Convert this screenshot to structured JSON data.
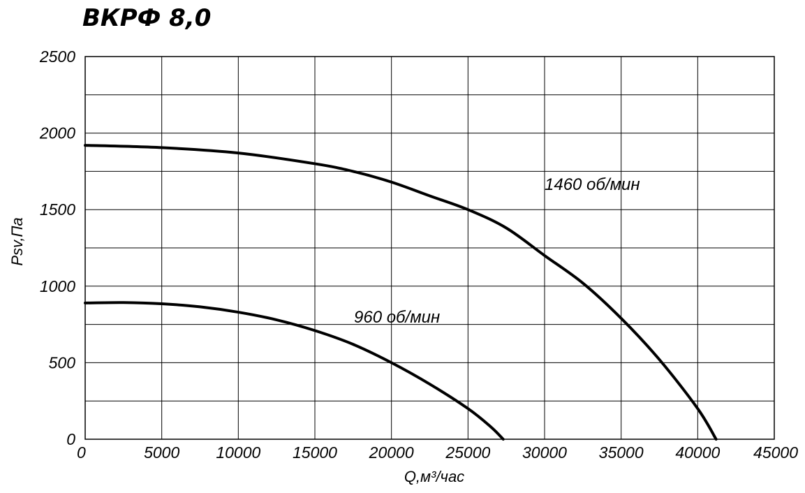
{
  "chart_data": {
    "type": "line",
    "title": "ВКРФ 8,0",
    "xlabel": "Q,м³/час",
    "ylabel": "Psv,Па",
    "xlim": [
      0,
      45000
    ],
    "ylim": [
      0,
      2500
    ],
    "x_ticks": [
      "0",
      "5000",
      "10000",
      "15000",
      "20000",
      "25000",
      "30000",
      "35000",
      "40000",
      "45000"
    ],
    "y_ticks": [
      "0",
      "500",
      "1000",
      "1500",
      "2000",
      "2500"
    ],
    "grid": true,
    "series": [
      {
        "name": "1460 об/мин",
        "x": [
          0,
          5000,
          10000,
          15000,
          17500,
          20000,
          22500,
          25000,
          27500,
          30000,
          32500,
          35000,
          37500,
          40000,
          41200
        ],
        "y": [
          1920,
          1905,
          1870,
          1800,
          1750,
          1680,
          1590,
          1500,
          1380,
          1200,
          1020,
          790,
          520,
          200,
          0
        ]
      },
      {
        "name": "960 об/мин",
        "x": [
          0,
          2500,
          5000,
          7500,
          10000,
          12500,
          15000,
          17500,
          20000,
          22500,
          25000,
          26500,
          27300
        ],
        "y": [
          890,
          893,
          885,
          865,
          830,
          780,
          710,
          620,
          500,
          360,
          200,
          80,
          0
        ]
      }
    ]
  }
}
